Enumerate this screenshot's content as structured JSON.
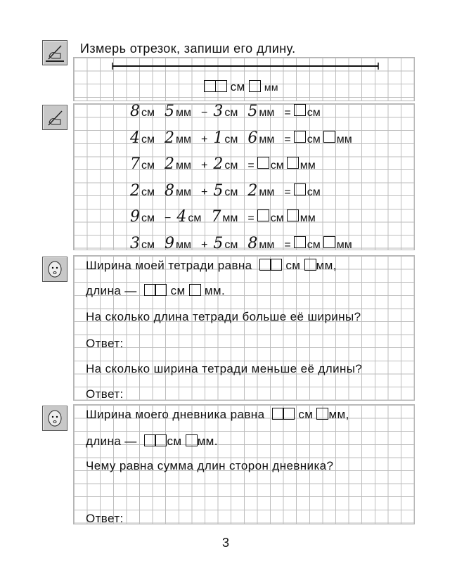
{
  "ex1": {
    "instruction": "Измерь отрезок, запиши его длину.",
    "unit_cm": "см",
    "unit_mm": "мм"
  },
  "ex2": {
    "rows": [
      [
        "8",
        "см",
        "5",
        "мм",
        "−",
        "3",
        "см",
        "5",
        "мм",
        "=",
        "box",
        "см"
      ],
      [
        "4",
        "см",
        "2",
        "мм",
        "+",
        "1",
        "см",
        "6",
        "мм",
        "=",
        "box",
        "см",
        "box",
        "мм"
      ],
      [
        "7",
        "см",
        "2",
        "мм",
        "+",
        "2",
        "см",
        "=",
        "box",
        "см",
        "box",
        "мм"
      ],
      [
        "2",
        "см",
        "8",
        "мм",
        "+",
        "5",
        "см",
        "2",
        "мм",
        "=",
        "box",
        "см"
      ],
      [
        "9",
        "см",
        "−",
        "4",
        "см",
        "7",
        "мм",
        "=",
        "box",
        "см",
        "box",
        "мм"
      ],
      [
        "3",
        "см",
        "9",
        "мм",
        "+",
        "5",
        "см",
        "8",
        "мм",
        "=",
        "box",
        "см",
        "box",
        "мм"
      ]
    ]
  },
  "ex3": {
    "width_prefix": "Ширина моей тетради равна",
    "cm": "см",
    "mm": "мм,",
    "length_prefix": "длина —",
    "cm2": "см",
    "mm2": "мм.",
    "q1": "На сколько длина тетради больше её ширины?",
    "answer1": "Ответ:",
    "q2": "На сколько ширина тетради меньше её длины?",
    "answer2": "Ответ:"
  },
  "ex4": {
    "width_prefix": "Ширина моего дневника равна",
    "cm": "см",
    "mm": "мм,",
    "length_prefix": "длина —",
    "cm2": "см",
    "mm2": "мм.",
    "q1": "Чему равна сумма длин сторон дневника?",
    "answer": "Ответ:"
  },
  "page_number": "3",
  "icons": [
    "pencil-ruler-icon",
    "pencil-icon",
    "boy-face-icon",
    "boy-face-icon"
  ]
}
